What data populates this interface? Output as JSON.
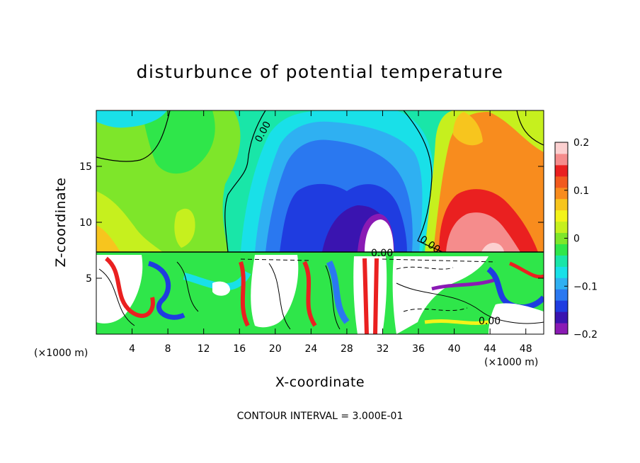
{
  "chart_data": {
    "type": "heatmap",
    "title": "disturbunce of potential temperature",
    "xlabel": "X-coordinate",
    "ylabel": "Z-coordinate",
    "x_unit": "(×1000 m)",
    "x_unit_right": "(×1000 m)",
    "xlim": [
      0,
      50
    ],
    "ylim": [
      0,
      20
    ],
    "xticks": [
      "4",
      "8",
      "12",
      "16",
      "20",
      "24",
      "28",
      "32",
      "36",
      "40",
      "44",
      "48"
    ],
    "yticks": [
      "5",
      "10",
      "15"
    ],
    "footer": "CONTOUR INTERVAL = 3.000E-01",
    "contour_label": "0.00",
    "colorbar": {
      "min": -0.2,
      "max": 0.2,
      "ticks": [
        "0.2",
        "0.1",
        "0",
        "−0.1",
        "−0.2"
      ],
      "colors": [
        "#8a1ab4",
        "#3a14b0",
        "#1f3ce0",
        "#2a78f0",
        "#2fb0f2",
        "#19e0e8",
        "#19e6a8",
        "#2fe64a",
        "#7ee62a",
        "#c6f01e",
        "#f3f319",
        "#f7c51e",
        "#f88c1e",
        "#f25a1e",
        "#ea2020",
        "#f58c8c",
        "#fcd0d0"
      ]
    },
    "grid": false,
    "legend": "right"
  }
}
